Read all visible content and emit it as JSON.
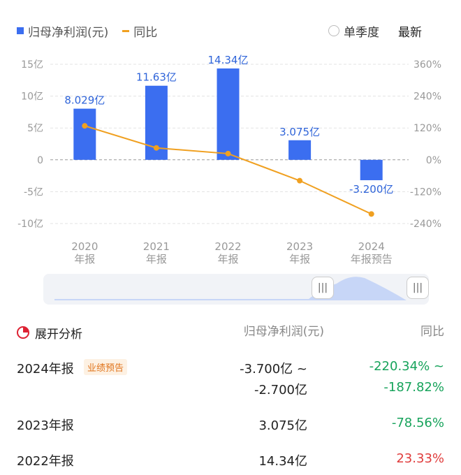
{
  "legend": {
    "series1": "归母净利润(元)",
    "series2": "同比"
  },
  "controls": {
    "quarterly": "单季度",
    "latest": "最新"
  },
  "chart_data": {
    "type": "bar",
    "categories": [
      "2020\n年报",
      "2021\n年报",
      "2022\n年报",
      "2023\n年报",
      "2024\n年报预告"
    ],
    "category_lines": [
      [
        "2020",
        "年报"
      ],
      [
        "2021",
        "年报"
      ],
      [
        "2022",
        "年报"
      ],
      [
        "2023",
        "年报"
      ],
      [
        "2024",
        "年报预告"
      ]
    ],
    "series": [
      {
        "name": "归母净利润(元)",
        "type": "bar",
        "axis": "left",
        "values": [
          8.029,
          11.63,
          14.34,
          3.075,
          -3.2
        ],
        "labels": [
          "8.029亿",
          "11.63亿",
          "14.34亿",
          "3.075亿",
          "-3.200亿"
        ],
        "color": "#3b6ef0"
      },
      {
        "name": "同比",
        "type": "line",
        "axis": "right",
        "values": [
          128,
          45,
          23.33,
          -78.56,
          -204
        ],
        "color": "#f0a020"
      }
    ],
    "left_axis": {
      "ticks": [
        15,
        10,
        5,
        0,
        -5,
        -10
      ],
      "tick_labels": [
        "15亿",
        "10亿",
        "5亿",
        "0",
        "-5亿",
        "-10亿"
      ],
      "ylim": [
        -10,
        15
      ]
    },
    "right_axis": {
      "ticks": [
        360,
        240,
        120,
        0,
        -120,
        -240
      ],
      "tick_labels": [
        "360%",
        "240%",
        "120%",
        "0%",
        "-120%",
        "-240%"
      ],
      "ylim": [
        -240,
        360
      ]
    },
    "grid": true
  },
  "slider": {
    "handle_left": "|||",
    "handle_right": "|||"
  },
  "table": {
    "title": "展开分析",
    "col_value": "归母净利润(元)",
    "col_yoy": "同比",
    "rows": [
      {
        "period": "2024年报",
        "tag": "业绩预告",
        "value": "-3.700亿 ~",
        "value2": "-2.700亿",
        "yoy": "-220.34% ~",
        "yoy2": "-187.82%",
        "yoy_color": "#17a35b"
      },
      {
        "period": "2023年报",
        "value": "3.075亿",
        "yoy": "-78.56%",
        "yoy_color": "#17a35b"
      },
      {
        "period": "2022年报",
        "value": "14.34亿",
        "yoy": "23.33%",
        "yoy_color": "#e03c3c"
      }
    ]
  }
}
